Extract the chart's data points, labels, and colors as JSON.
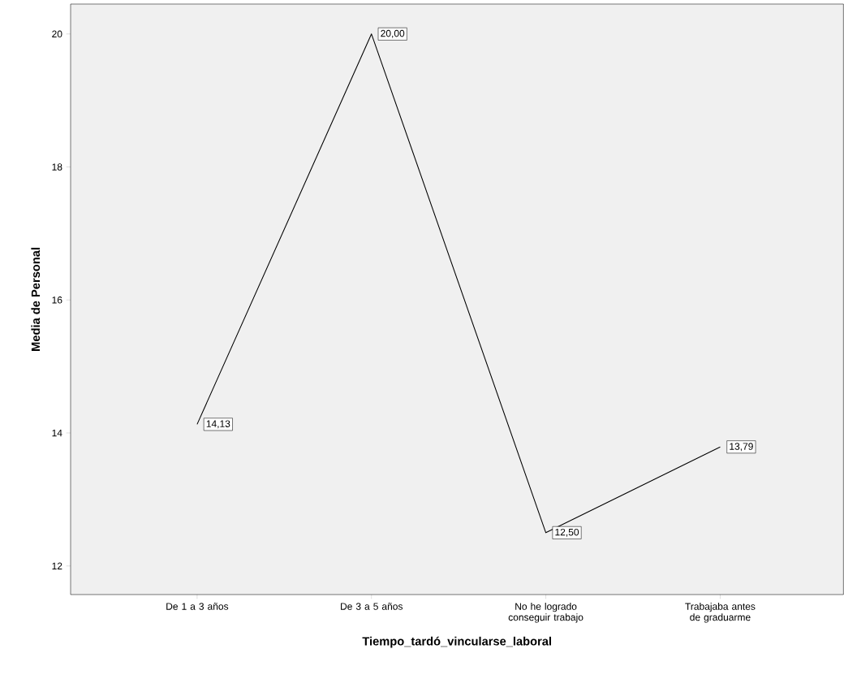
{
  "chart_data": {
    "type": "line",
    "xlabel": "Tiempo_tardó_vincularse_laboral",
    "ylabel": "Media de Personal",
    "categories": [
      "De 1 a 3 años",
      "De 3 a 5 años",
      "No he logrado conseguir trabajo",
      "Trabajaba antes de graduarme"
    ],
    "values": [
      14.13,
      20.0,
      12.5,
      13.79
    ],
    "value_labels": [
      "14,13",
      "20,00",
      "12,50",
      "13,79"
    ],
    "color": "#000000",
    "marker": "none",
    "ylim": [
      11.57,
      20.45
    ],
    "yticks": [
      12,
      14,
      16,
      18,
      20
    ],
    "grid": false
  }
}
